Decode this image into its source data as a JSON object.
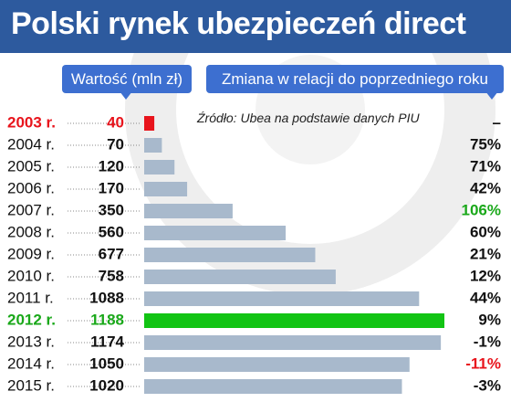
{
  "title": "Polski rynek ubezpieczeń direct",
  "legend": {
    "value_label": "Wartość (mln zł)",
    "change_label": "Zmiana w relacji do poprzedniego roku"
  },
  "source": "Źródło: Ubea na podstawie danych PIU",
  "colors": {
    "header": "#2d5a9e",
    "pill": "#3d6fd0",
    "bar_default": "#a8b9cc",
    "bar_2003": "#e8141c",
    "bar_2012": "#12c414",
    "text_red": "#e8141c",
    "text_green": "#1aa81a",
    "text_default": "#111111"
  },
  "chart_data": {
    "type": "bar",
    "orientation": "horizontal",
    "title": "Polski rynek ubezpieczeń direct",
    "categories": [
      "2003 r.",
      "2004 r.",
      "2005 r.",
      "2006 r.",
      "2007 r.",
      "2008 r.",
      "2009 r.",
      "2010 r.",
      "2011 r.",
      "2012 r.",
      "2013 r.",
      "2014 r.",
      "2015 r."
    ],
    "series": [
      {
        "name": "Wartość (mln zł)",
        "values": [
          40,
          70,
          120,
          170,
          350,
          560,
          677,
          758,
          1088,
          1188,
          1174,
          1050,
          1020
        ],
        "labels": [
          "40",
          "70",
          "120",
          "170",
          "350",
          "560",
          "677",
          "758",
          "1088",
          "1188",
          "1174",
          "1050",
          "1020"
        ]
      }
    ],
    "changes": [
      "–",
      "75%",
      "71%",
      "42%",
      "106%",
      "60%",
      "21%",
      "12%",
      "44%",
      "9%",
      "-1%",
      "-11%",
      "-3%"
    ],
    "highlights": {
      "category_red": "2003 r.",
      "category_green": "2012 r.",
      "change_green": "106%",
      "change_red": "-11%"
    },
    "xlim": [
      0,
      1188
    ],
    "grid": false,
    "legend": "top"
  }
}
